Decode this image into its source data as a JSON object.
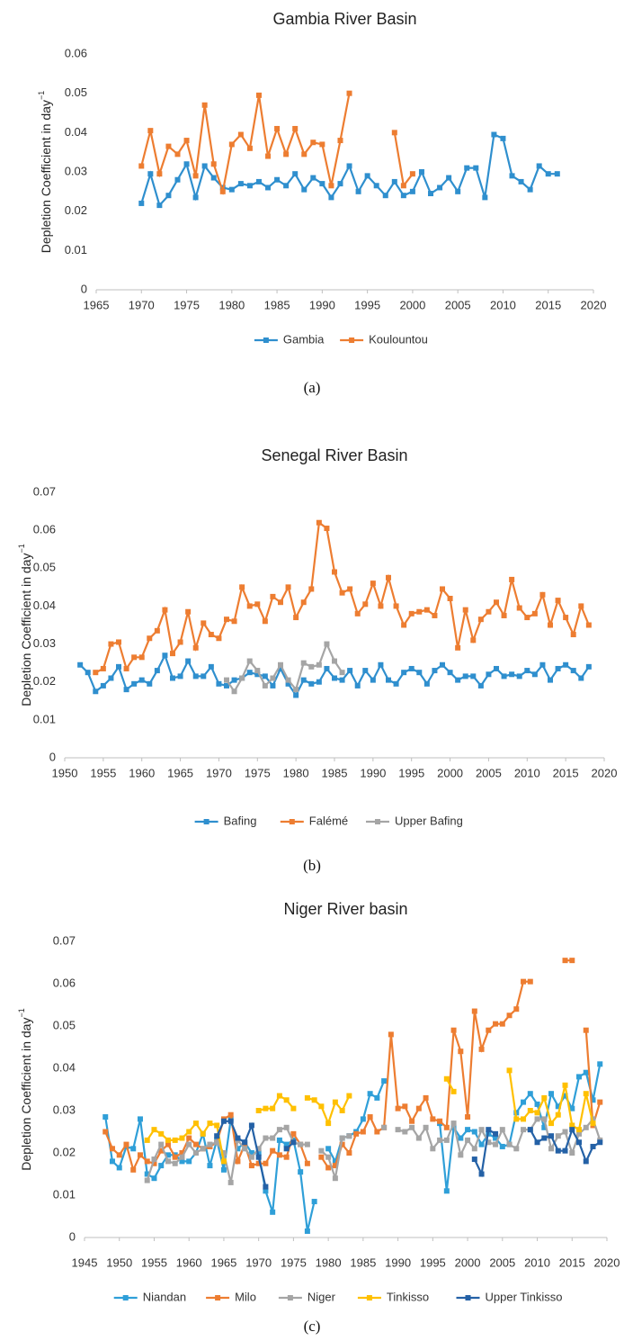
{
  "chart_data": [
    {
      "type": "line",
      "title": "Gambia River Basin",
      "caption": "(a)",
      "ylabel": "Depletion Coefficient in day",
      "ylabel_superscript": "−1",
      "xlim": [
        1965,
        2020
      ],
      "xticks": [
        1965,
        1970,
        1975,
        1980,
        1985,
        1990,
        1995,
        2000,
        2005,
        2010,
        2015,
        2020
      ],
      "ylim": [
        0,
        0.06
      ],
      "yticks": [
        0,
        0.01,
        0.02,
        0.03,
        0.04,
        0.05,
        0.06
      ],
      "grid": false,
      "legend": "bottom",
      "x": [
        1970,
        1971,
        1972,
        1973,
        1974,
        1975,
        1976,
        1977,
        1978,
        1979,
        1980,
        1981,
        1982,
        1983,
        1984,
        1985,
        1986,
        1987,
        1988,
        1989,
        1990,
        1991,
        1992,
        1993,
        1994,
        1995,
        1996,
        1997,
        1998,
        1999,
        2000,
        2001,
        2002,
        2003,
        2004,
        2005,
        2006,
        2007,
        2008,
        2009,
        2010,
        2011,
        2012,
        2013,
        2014,
        2015,
        2016
      ],
      "series": [
        {
          "name": "Gambia",
          "color": "#2f8fce",
          "values": [
            0.022,
            0.0295,
            0.0215,
            0.024,
            0.028,
            0.032,
            0.0235,
            0.0315,
            0.0285,
            0.026,
            0.0255,
            0.027,
            0.0265,
            0.0275,
            0.026,
            0.028,
            0.0265,
            0.0295,
            0.0255,
            0.0285,
            0.027,
            0.0235,
            0.027,
            0.0315,
            0.025,
            0.029,
            0.0265,
            0.024,
            0.0275,
            0.024,
            0.025,
            0.03,
            0.0245,
            0.026,
            0.0285,
            0.025,
            0.031,
            0.031,
            0.0235,
            0.0395,
            0.0385,
            0.029,
            0.0275,
            0.0255,
            0.0315,
            0.0295,
            0.0295
          ]
        },
        {
          "name": "Koulountou",
          "color": "#ed7d31",
          "values": [
            0.0315,
            0.0405,
            0.0295,
            0.0365,
            0.0345,
            0.038,
            0.029,
            0.047,
            0.032,
            0.025,
            0.037,
            0.0395,
            0.036,
            0.0495,
            0.034,
            0.041,
            0.0345,
            0.041,
            0.0345,
            0.0375,
            0.037,
            0.0265,
            0.038,
            0.05,
            null,
            null,
            null,
            null,
            0.04,
            0.0265,
            0.0295,
            null,
            null,
            null,
            null,
            null,
            null,
            null,
            null,
            null,
            null,
            null,
            null,
            null,
            null,
            null,
            null
          ]
        }
      ]
    },
    {
      "type": "line",
      "title": "Senegal River Basin",
      "caption": "(b)",
      "ylabel": "Depletion Coefficient in day",
      "ylabel_superscript": "−1",
      "xlim": [
        1950,
        2020
      ],
      "xticks": [
        1950,
        1955,
        1960,
        1965,
        1970,
        1975,
        1980,
        1985,
        1990,
        1995,
        2000,
        2005,
        2010,
        2015,
        2020
      ],
      "ylim": [
        0,
        0.07
      ],
      "yticks": [
        0,
        0.01,
        0.02,
        0.03,
        0.04,
        0.05,
        0.06,
        0.07
      ],
      "grid": false,
      "legend": "bottom",
      "x": [
        1952,
        1953,
        1954,
        1955,
        1956,
        1957,
        1958,
        1959,
        1960,
        1961,
        1962,
        1963,
        1964,
        1965,
        1966,
        1967,
        1968,
        1969,
        1970,
        1971,
        1972,
        1973,
        1974,
        1975,
        1976,
        1977,
        1978,
        1979,
        1980,
        1981,
        1982,
        1983,
        1984,
        1985,
        1986,
        1987,
        1988,
        1989,
        1990,
        1991,
        1992,
        1993,
        1994,
        1995,
        1996,
        1997,
        1998,
        1999,
        2000,
        2001,
        2002,
        2003,
        2004,
        2005,
        2006,
        2007,
        2008,
        2009,
        2010,
        2011,
        2012,
        2013,
        2014,
        2015,
        2016,
        2017,
        2018
      ],
      "series": [
        {
          "name": "Bafing",
          "color": "#2f8fce",
          "values": [
            0.0245,
            0.0225,
            0.0175,
            0.019,
            0.021,
            0.024,
            0.018,
            0.0195,
            0.0205,
            0.0195,
            0.023,
            0.027,
            0.021,
            0.0215,
            0.0255,
            0.0215,
            0.0215,
            0.024,
            0.0195,
            0.019,
            0.0205,
            0.021,
            0.0225,
            0.022,
            0.0215,
            0.019,
            0.0235,
            0.0195,
            0.0165,
            0.0205,
            0.0195,
            0.02,
            0.0235,
            0.021,
            0.0205,
            0.023,
            0.019,
            0.023,
            0.0205,
            0.0245,
            0.0205,
            0.0195,
            0.0225,
            0.0235,
            0.0225,
            0.0195,
            0.023,
            0.0245,
            0.0225,
            0.0205,
            0.0215,
            0.0215,
            0.019,
            0.022,
            0.0235,
            0.0215,
            0.022,
            0.0215,
            0.023,
            0.022,
            0.0245,
            0.0205,
            0.0235,
            0.0245,
            0.023,
            0.021,
            0.024
          ]
        },
        {
          "name": "Falémé",
          "color": "#ed7d31",
          "values": [
            null,
            null,
            0.0225,
            0.0235,
            0.03,
            0.0305,
            0.0235,
            0.0265,
            0.0265,
            0.0315,
            0.0335,
            0.039,
            0.0275,
            0.0305,
            0.0385,
            0.029,
            0.0355,
            0.0325,
            0.0315,
            0.0365,
            0.036,
            0.045,
            0.04,
            0.0405,
            0.036,
            0.0425,
            0.041,
            0.045,
            0.037,
            0.041,
            0.0445,
            0.062,
            0.0605,
            0.049,
            0.0435,
            0.0445,
            0.038,
            0.0405,
            0.046,
            0.04,
            0.0475,
            0.04,
            0.035,
            0.038,
            0.0385,
            0.039,
            0.0375,
            0.0445,
            0.042,
            0.029,
            0.039,
            0.031,
            0.0365,
            0.0385,
            0.041,
            0.0375,
            0.047,
            0.0395,
            0.037,
            0.038,
            0.043,
            0.035,
            0.0415,
            0.037,
            0.0325,
            0.04,
            0.035
          ]
        },
        {
          "name": "Upper Bafing",
          "color": "#a5a5a5",
          "values": [
            null,
            null,
            null,
            null,
            null,
            null,
            null,
            null,
            null,
            null,
            null,
            null,
            null,
            null,
            null,
            null,
            null,
            null,
            null,
            0.0205,
            0.0175,
            0.021,
            0.0255,
            0.023,
            0.019,
            0.021,
            0.0245,
            0.0205,
            0.018,
            0.025,
            0.024,
            0.0245,
            0.03,
            0.0255,
            0.0225,
            null,
            null,
            null,
            null,
            null,
            null,
            null,
            null,
            null,
            null,
            null,
            null,
            null,
            null,
            null,
            null,
            null,
            null,
            null,
            null,
            null,
            null,
            null,
            null,
            null,
            null,
            null,
            null,
            null,
            null,
            null,
            null
          ]
        }
      ]
    },
    {
      "type": "line",
      "title": "Niger River basin",
      "caption": "(c)",
      "ylabel": "Depletion Coefficient in day",
      "ylabel_superscript": "−1",
      "xlim": [
        1945,
        2020
      ],
      "xticks": [
        1945,
        1950,
        1955,
        1960,
        1965,
        1970,
        1975,
        1980,
        1985,
        1990,
        1995,
        2000,
        2005,
        2010,
        2015,
        2020
      ],
      "ylim": [
        0,
        0.07
      ],
      "yticks": [
        0,
        0.01,
        0.02,
        0.03,
        0.04,
        0.05,
        0.06,
        0.07
      ],
      "grid": false,
      "legend": "bottom",
      "x": [
        1948,
        1949,
        1950,
        1951,
        1952,
        1953,
        1954,
        1955,
        1956,
        1957,
        1958,
        1959,
        1960,
        1961,
        1962,
        1963,
        1964,
        1965,
        1966,
        1967,
        1968,
        1969,
        1970,
        1971,
        1972,
        1973,
        1974,
        1975,
        1976,
        1977,
        1978,
        1979,
        1980,
        1981,
        1982,
        1983,
        1984,
        1985,
        1986,
        1987,
        1988,
        1989,
        1990,
        1991,
        1992,
        1993,
        1994,
        1995,
        1996,
        1997,
        1998,
        1999,
        2000,
        2001,
        2002,
        2003,
        2004,
        2005,
        2006,
        2007,
        2008,
        2009,
        2010,
        2011,
        2012,
        2013,
        2014,
        2015,
        2016,
        2017,
        2018,
        2019
      ],
      "series": [
        {
          "name": "Niandan",
          "color": "#2f9fd8",
          "values": [
            0.0285,
            0.018,
            0.0165,
            0.0215,
            0.021,
            0.028,
            0.015,
            0.014,
            0.017,
            0.0195,
            0.0195,
            0.018,
            0.018,
            0.02,
            0.0245,
            0.017,
            0.023,
            0.016,
            0.028,
            0.021,
            0.0225,
            0.02,
            0.02,
            0.011,
            0.006,
            0.023,
            0.022,
            0.023,
            0.0155,
            0.0015,
            0.0085,
            null,
            0.021,
            0.018,
            0.0235,
            0.024,
            0.025,
            0.028,
            0.034,
            0.033,
            0.037,
            null,
            null,
            null,
            null,
            null,
            null,
            null,
            0.027,
            0.011,
            0.026,
            0.0235,
            0.0255,
            0.025,
            0.022,
            0.0245,
            0.0235,
            0.0215,
            0.022,
            0.0295,
            0.032,
            0.034,
            0.0315,
            0.026,
            0.034,
            0.031,
            0.0335,
            0.0305,
            0.038,
            0.039,
            0.0325,
            0.041
          ]
        },
        {
          "name": "Milo",
          "color": "#ed7d31",
          "values": [
            0.025,
            0.021,
            0.0195,
            0.022,
            0.016,
            0.0195,
            0.018,
            0.0175,
            0.0205,
            0.022,
            0.019,
            0.02,
            0.0235,
            0.022,
            0.021,
            0.0215,
            0.0225,
            0.028,
            0.029,
            0.018,
            0.022,
            0.017,
            0.0175,
            0.0175,
            0.0205,
            0.0195,
            0.019,
            0.0245,
            0.022,
            0.0175,
            null,
            0.019,
            0.0165,
            0.017,
            0.022,
            0.02,
            0.0245,
            0.025,
            0.0285,
            0.025,
            0.026,
            0.048,
            0.0305,
            0.031,
            0.0275,
            0.0305,
            0.033,
            0.028,
            0.0275,
            0.026,
            0.049,
            0.044,
            0.0285,
            0.0535,
            0.0445,
            0.049,
            0.0505,
            0.0505,
            0.0525,
            0.054,
            0.0605,
            0.0605,
            null,
            null,
            null,
            null,
            0.0655,
            0.0655,
            null,
            0.049,
            0.0265,
            0.032
          ]
        },
        {
          "name": "Niger",
          "color": "#a5a5a5",
          "values": [
            null,
            null,
            null,
            null,
            null,
            null,
            0.0135,
            0.0185,
            0.022,
            0.018,
            0.0175,
            0.019,
            0.022,
            0.02,
            0.021,
            0.022,
            0.0225,
            0.02,
            0.013,
            0.023,
            0.021,
            0.019,
            0.021,
            0.0235,
            0.0235,
            0.0255,
            0.026,
            0.0225,
            0.022,
            0.022,
            null,
            0.0205,
            0.019,
            0.014,
            0.0235,
            0.024,
            null,
            null,
            null,
            null,
            0.026,
            null,
            0.0255,
            0.025,
            0.026,
            0.0235,
            0.026,
            0.021,
            0.023,
            0.023,
            0.027,
            0.0195,
            0.023,
            0.021,
            0.0255,
            0.0225,
            0.022,
            0.0255,
            0.022,
            0.021,
            0.0255,
            0.0255,
            0.028,
            0.028,
            0.021,
            0.024,
            0.025,
            0.02,
            0.0245,
            0.026,
            0.028,
            0.023
          ]
        },
        {
          "name": "Tinkisso",
          "color": "#ffc000",
          "values": [
            null,
            null,
            null,
            null,
            null,
            null,
            0.023,
            0.0255,
            0.0245,
            0.023,
            0.023,
            0.0235,
            0.025,
            0.027,
            0.0245,
            0.027,
            0.0265,
            0.018,
            null,
            null,
            null,
            null,
            0.03,
            0.0305,
            0.0305,
            0.0335,
            0.0325,
            0.0305,
            null,
            0.033,
            0.0325,
            0.031,
            0.027,
            0.032,
            0.03,
            0.0335,
            null,
            null,
            null,
            null,
            null,
            null,
            null,
            null,
            null,
            null,
            null,
            null,
            null,
            0.0375,
            0.0345,
            null,
            null,
            null,
            null,
            null,
            null,
            null,
            0.0395,
            0.028,
            0.028,
            0.03,
            0.0295,
            0.033,
            0.027,
            0.029,
            0.036,
            0.0265,
            0.0255,
            0.034,
            0.027,
            null
          ]
        },
        {
          "name": "Upper Tinkisso",
          "color": "#2461a6",
          "values": [
            null,
            null,
            null,
            null,
            null,
            null,
            null,
            null,
            null,
            null,
            null,
            null,
            null,
            null,
            null,
            null,
            0.024,
            0.0275,
            0.0275,
            0.0235,
            0.0225,
            0.0265,
            0.019,
            0.012,
            null,
            null,
            0.021,
            0.0225,
            null,
            null,
            null,
            null,
            null,
            null,
            null,
            null,
            null,
            null,
            null,
            null,
            null,
            null,
            null,
            null,
            null,
            null,
            null,
            null,
            null,
            null,
            null,
            null,
            null,
            0.0185,
            0.015,
            0.0255,
            0.0245,
            null,
            null,
            null,
            null,
            0.0255,
            0.0225,
            0.0235,
            0.024,
            0.0205,
            0.0205,
            0.0255,
            0.0225,
            0.018,
            0.0215,
            0.0225
          ]
        }
      ]
    }
  ]
}
